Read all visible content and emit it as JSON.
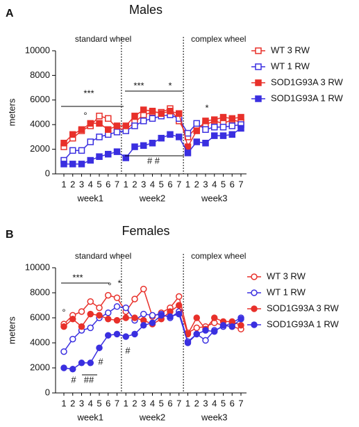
{
  "chart_data": [
    {
      "type": "line",
      "panel_label": "A",
      "title": "Males",
      "ylabel": "meters",
      "categories": [
        "1",
        "2",
        "3",
        "4",
        "5",
        "6",
        "7",
        "1",
        "2",
        "3",
        "4",
        "5",
        "6",
        "7",
        "1",
        "2",
        "3",
        "4",
        "5",
        "6",
        "7"
      ],
      "groups": [
        "week1",
        "week2",
        "week3"
      ],
      "sections": [
        "standard wheel",
        "complex wheel"
      ],
      "ylim": [
        0,
        10000
      ],
      "yticks": [
        0,
        2000,
        4000,
        6000,
        8000,
        10000
      ],
      "series": [
        {
          "name": "WT 3 RW",
          "color": "#e8302a",
          "marker": "square",
          "filled": false,
          "values": [
            2200,
            2900,
            3500,
            3900,
            4700,
            4500,
            3700,
            3600,
            4200,
            4800,
            5000,
            5000,
            5300,
            4300,
            3000,
            3800,
            4000,
            4300,
            4100,
            4400,
            4200
          ]
        },
        {
          "name": "WT 1 RW",
          "color": "#3a2fe0",
          "marker": "square",
          "filled": false,
          "values": [
            1100,
            1900,
            1900,
            2600,
            3000,
            3200,
            3400,
            3500,
            3900,
            4300,
            4500,
            4700,
            4800,
            4500,
            3300,
            4100,
            3600,
            3800,
            3800,
            3900,
            4000
          ]
        },
        {
          "name": "SOD1G93A 3 RW",
          "color": "#e8302a",
          "marker": "square",
          "filled": true,
          "values": [
            2500,
            3200,
            3600,
            4100,
            4100,
            3600,
            3900,
            3900,
            4700,
            5200,
            5100,
            4900,
            5100,
            4900,
            2200,
            3500,
            4300,
            4400,
            4600,
            4500,
            4600
          ]
        },
        {
          "name": "SOD1G93A 1 RW",
          "color": "#3a2fe0",
          "marker": "square",
          "filled": true,
          "values": [
            800,
            800,
            800,
            1100,
            1400,
            1600,
            1800,
            1300,
            2200,
            2300,
            2500,
            2900,
            3200,
            3000,
            1700,
            2600,
            2500,
            3100,
            3100,
            3200,
            3700
          ]
        }
      ],
      "annotations": [
        "***",
        "***",
        "*",
        "°",
        "*",
        "# #"
      ]
    },
    {
      "type": "line",
      "panel_label": "B",
      "title": "Females",
      "ylabel": "meters",
      "categories": [
        "1",
        "2",
        "3",
        "4",
        "5",
        "6",
        "7",
        "1",
        "2",
        "3",
        "4",
        "5",
        "6",
        "7",
        "1",
        "2",
        "3",
        "4",
        "5",
        "6",
        "7"
      ],
      "groups": [
        "week1",
        "week2",
        "week3"
      ],
      "sections": [
        "standard wheel",
        "complex wheel"
      ],
      "ylim": [
        0,
        10000
      ],
      "yticks": [
        0,
        2000,
        4000,
        6000,
        8000,
        10000
      ],
      "series": [
        {
          "name": "WT 3 RW",
          "color": "#e8302a",
          "marker": "circle",
          "filled": false,
          "values": [
            5500,
            6200,
            6500,
            7300,
            6800,
            7800,
            7600,
            6500,
            7500,
            8300,
            6100,
            6400,
            6800,
            7700,
            4800,
            5200,
            5300,
            5600,
            5400,
            5300,
            5100
          ]
        },
        {
          "name": "WT 1 RW",
          "color": "#3a2fe0",
          "marker": "circle",
          "filled": false,
          "values": [
            3300,
            4300,
            5000,
            5200,
            6000,
            6400,
            6900,
            6800,
            5800,
            6300,
            6200,
            6300,
            6000,
            6500,
            4100,
            4700,
            4200,
            5000,
            5300,
            5600,
            6000
          ]
        },
        {
          "name": "SOD1G93A 3 RW",
          "color": "#e8302a",
          "marker": "circle",
          "filled": true,
          "values": [
            5300,
            5900,
            5300,
            6300,
            6200,
            5900,
            5800,
            6000,
            6000,
            5800,
            5500,
            5900,
            6500,
            7000,
            4700,
            6000,
            5100,
            6000,
            5700,
            5700,
            5400
          ]
        },
        {
          "name": "SOD1G93A 1 RW",
          "color": "#3a2fe0",
          "marker": "circle",
          "filled": true,
          "values": [
            2000,
            1900,
            2400,
            2400,
            3600,
            4600,
            4700,
            4500,
            4700,
            5400,
            5600,
            6200,
            6100,
            6300,
            4000,
            4700,
            5000,
            4900,
            5400,
            5300,
            5900
          ]
        }
      ],
      "annotations": [
        "***",
        "°",
        "°",
        "*",
        "#",
        "##",
        "#",
        "#"
      ]
    }
  ]
}
